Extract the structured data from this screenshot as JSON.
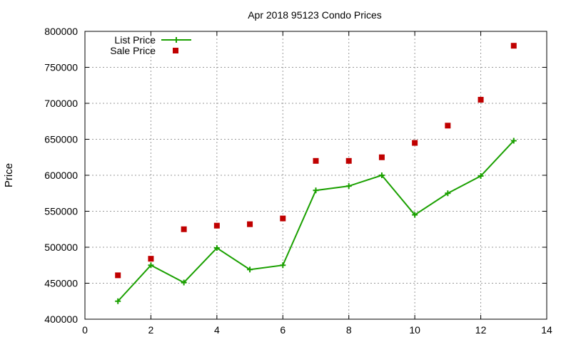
{
  "chart_data": {
    "type": "line",
    "title": "Apr 2018 95123 Condo Prices",
    "xlabel": "",
    "ylabel": "Price",
    "xlim": [
      0,
      14
    ],
    "ylim": [
      400000,
      800000
    ],
    "x_ticks": [
      0,
      2,
      4,
      6,
      8,
      10,
      12,
      14
    ],
    "y_ticks": [
      400000,
      450000,
      500000,
      550000,
      600000,
      650000,
      700000,
      750000,
      800000
    ],
    "grid": true,
    "legend_position": "top-left",
    "series": [
      {
        "name": "List Price",
        "style": "line-with-plus-markers",
        "color": "#1aa000",
        "x": [
          1,
          2,
          3,
          4,
          5,
          6,
          7,
          8,
          9,
          10,
          11,
          12,
          13
        ],
        "y": [
          425000,
          475000,
          451000,
          499000,
          469000,
          475000,
          579000,
          585000,
          600000,
          545000,
          575000,
          599000,
          648000
        ]
      },
      {
        "name": "Sale Price",
        "style": "square-markers",
        "color": "#c00000",
        "x": [
          1,
          2,
          3,
          4,
          5,
          6,
          7,
          8,
          9,
          10,
          11,
          12,
          13
        ],
        "y": [
          461000,
          484000,
          525000,
          530000,
          532000,
          540000,
          620000,
          620000,
          625000,
          645000,
          669000,
          705000,
          780000
        ]
      }
    ]
  }
}
